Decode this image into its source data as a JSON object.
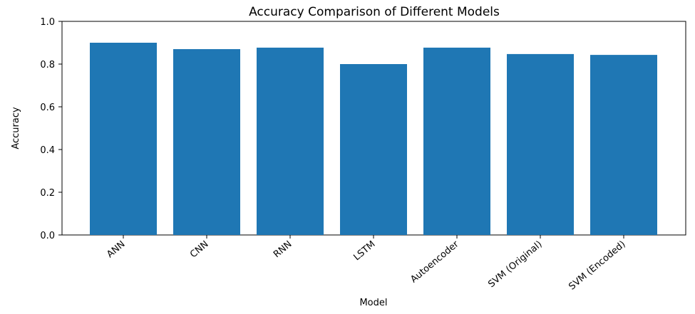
{
  "chart_data": {
    "type": "bar",
    "title": "Accuracy Comparison of Different Models",
    "xlabel": "Model",
    "ylabel": "Accuracy",
    "categories": [
      "ANN",
      "CNN",
      "RNN",
      "LSTM",
      "Autoencoder",
      "SVM (Original)",
      "SVM (Encoded)"
    ],
    "values": [
      0.9,
      0.87,
      0.877,
      0.8,
      0.877,
      0.847,
      0.843
    ],
    "ylim": [
      0.0,
      1.0
    ],
    "yticks": [
      "0.0",
      "0.2",
      "0.4",
      "0.6",
      "0.8",
      "1.0"
    ],
    "grid": false,
    "legend": "none",
    "bar_color": "#1f77b4"
  }
}
